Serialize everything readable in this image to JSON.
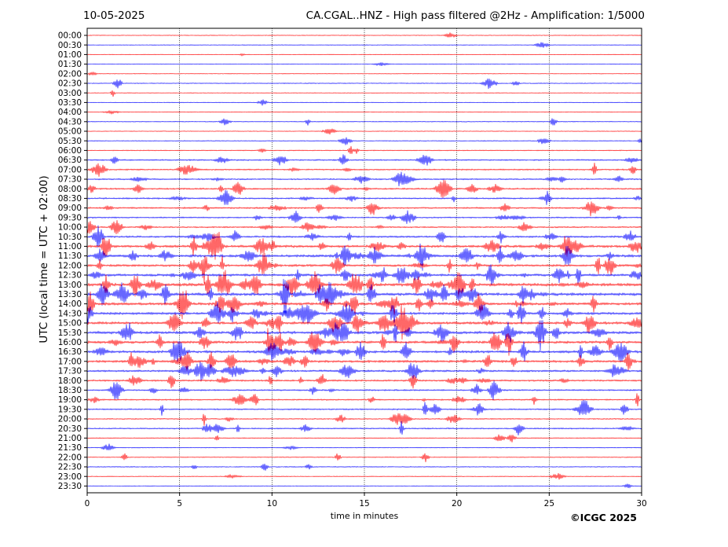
{
  "header": {
    "date": "10-05-2025",
    "title": "CA.CGAL..HNZ - High pass filtered @2Hz - Amplification: 1/5000"
  },
  "footer": {
    "credit": "©ICGC 2025"
  },
  "chart_data": {
    "type": "line",
    "ylabel": "UTC (local time = UTC + 02:00)",
    "xlabel": "time in minutes",
    "xlim": [
      0,
      30
    ],
    "x_ticks": [
      "0",
      "5",
      "10",
      "15",
      "20",
      "25",
      "30"
    ],
    "x_tick_values": [
      0,
      5,
      10,
      15,
      20,
      25,
      30
    ],
    "row_labels": [
      "00:00",
      "00:30",
      "01:00",
      "01:30",
      "02:00",
      "02:30",
      "03:00",
      "03:30",
      "04:00",
      "04:30",
      "05:00",
      "05:30",
      "06:00",
      "06:30",
      "07:00",
      "07:30",
      "08:00",
      "08:30",
      "09:00",
      "09:30",
      "10:00",
      "10:30",
      "11:00",
      "11:30",
      "12:00",
      "12:30",
      "13:00",
      "13:30",
      "14:00",
      "14:30",
      "15:00",
      "15:30",
      "16:00",
      "16:30",
      "17:00",
      "17:30",
      "18:00",
      "18:30",
      "19:00",
      "19:30",
      "20:00",
      "20:30",
      "21:00",
      "21:30",
      "22:00",
      "22:30",
      "23:00",
      "23:30"
    ],
    "row_activity": [
      0.05,
      0.05,
      0.05,
      0.05,
      0.05,
      0.12,
      0.05,
      0.06,
      0.05,
      0.12,
      0.05,
      0.12,
      0.15,
      0.35,
      0.35,
      0.35,
      0.45,
      0.4,
      0.45,
      0.35,
      0.35,
      0.55,
      0.8,
      0.85,
      0.7,
      0.8,
      1.0,
      0.95,
      0.9,
      0.8,
      0.85,
      0.9,
      0.85,
      0.8,
      0.75,
      0.6,
      0.5,
      0.4,
      0.35,
      0.35,
      0.25,
      0.3,
      0.15,
      0.1,
      0.12,
      0.15,
      0.08,
      0.05
    ],
    "colors": [
      "#ff0000",
      "#0000ff"
    ],
    "grid": true,
    "grid_style": "dotted vertical at 5-minute marks"
  }
}
